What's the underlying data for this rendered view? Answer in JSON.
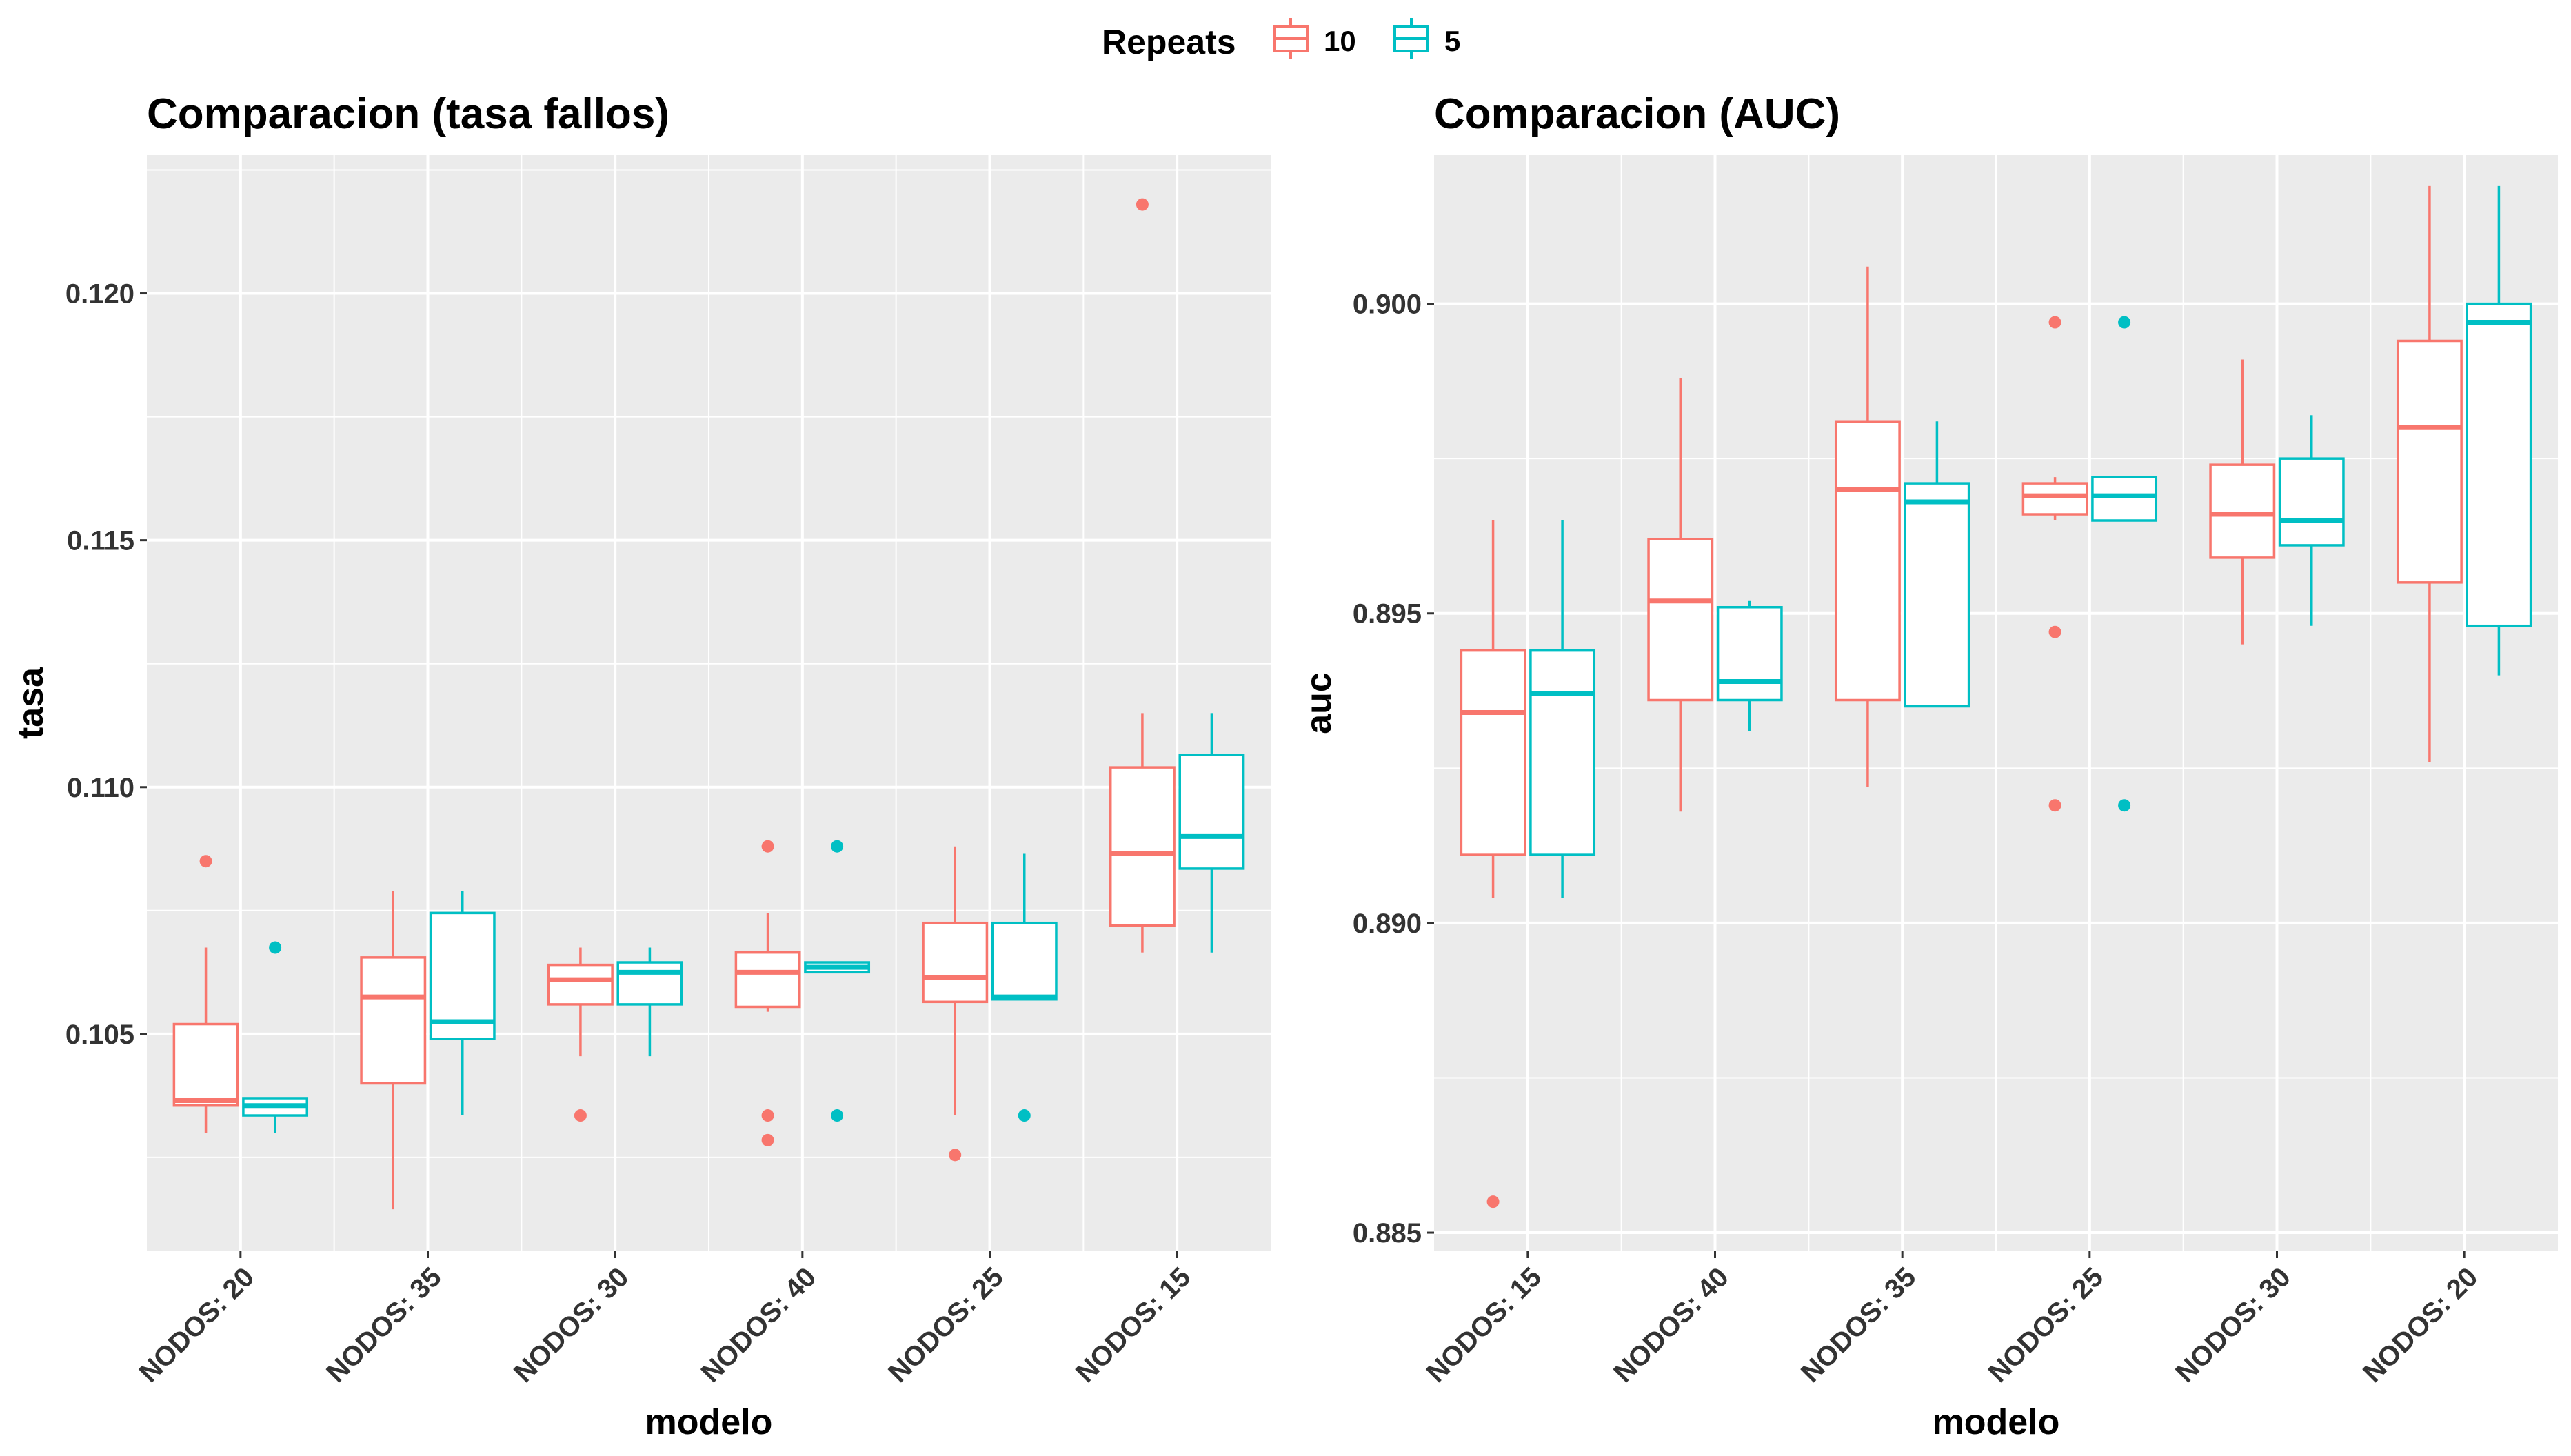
{
  "legend": {
    "title": "Repeats",
    "position": "top",
    "entries": [
      {
        "label": "10",
        "color": "#F8766D"
      },
      {
        "label": "5",
        "color": "#00BFC4"
      }
    ]
  },
  "chart_data": [
    {
      "type": "boxplot",
      "title": "Comparacion (tasa fallos)",
      "xlabel": "modelo",
      "ylabel": "tasa",
      "ylim": [
        0.1006,
        0.1228
      ],
      "yticks": [
        0.105,
        0.11,
        0.115,
        0.12
      ],
      "ytick_labels": [
        "0.105",
        "0.110",
        "0.115",
        "0.120"
      ],
      "grid": true,
      "categories": [
        "NODOS: 20",
        "NODOS: 35",
        "NODOS: 30",
        "NODOS: 40",
        "NODOS: 25",
        "NODOS: 15"
      ],
      "series": [
        {
          "name": "10",
          "color": "#F8766D",
          "boxes": [
            {
              "whisker_low": 0.103,
              "q1": 0.10355,
              "median": 0.10365,
              "q3": 0.1052,
              "whisker_high": 0.10675,
              "outliers": [
                0.1085
              ]
            },
            {
              "whisker_low": 0.10145,
              "q1": 0.104,
              "median": 0.10575,
              "q3": 0.10655,
              "whisker_high": 0.1079,
              "outliers": []
            },
            {
              "whisker_low": 0.10455,
              "q1": 0.1056,
              "median": 0.1061,
              "q3": 0.1064,
              "whisker_high": 0.10675,
              "outliers": [
                0.10335
              ]
            },
            {
              "whisker_low": 0.10545,
              "q1": 0.10555,
              "median": 0.10625,
              "q3": 0.10665,
              "whisker_high": 0.10745,
              "outliers": [
                0.1088,
                0.10335,
                0.10285
              ]
            },
            {
              "whisker_low": 0.10335,
              "q1": 0.10565,
              "median": 0.10615,
              "q3": 0.10725,
              "whisker_high": 0.1088,
              "outliers": [
                0.10255
              ]
            },
            {
              "whisker_low": 0.10665,
              "q1": 0.1072,
              "median": 0.10865,
              "q3": 0.1104,
              "whisker_high": 0.1115,
              "outliers": [
                0.1218
              ]
            }
          ]
        },
        {
          "name": "5",
          "color": "#00BFC4",
          "boxes": [
            {
              "whisker_low": 0.103,
              "q1": 0.10335,
              "median": 0.10355,
              "q3": 0.1037,
              "whisker_high": 0.1037,
              "outliers": [
                0.10675
              ]
            },
            {
              "whisker_low": 0.10335,
              "q1": 0.1049,
              "median": 0.10525,
              "q3": 0.10745,
              "whisker_high": 0.1079,
              "outliers": []
            },
            {
              "whisker_low": 0.10455,
              "q1": 0.1056,
              "median": 0.10625,
              "q3": 0.10645,
              "whisker_high": 0.10675,
              "outliers": []
            },
            {
              "whisker_low": 0.10625,
              "q1": 0.10625,
              "median": 0.10635,
              "q3": 0.10645,
              "whisker_high": 0.10645,
              "outliers": [
                0.1088,
                0.10335
              ]
            },
            {
              "whisker_low": 0.1057,
              "q1": 0.1057,
              "median": 0.10575,
              "q3": 0.10725,
              "whisker_high": 0.10865,
              "outliers": [
                0.10335
              ]
            },
            {
              "whisker_low": 0.10665,
              "q1": 0.10835,
              "median": 0.109,
              "q3": 0.11065,
              "whisker_high": 0.1115,
              "outliers": []
            }
          ]
        }
      ]
    },
    {
      "type": "boxplot",
      "title": "Comparacion (AUC)",
      "xlabel": "modelo",
      "ylabel": "auc",
      "ylim": [
        0.8847,
        0.9024
      ],
      "yticks": [
        0.885,
        0.89,
        0.895,
        0.9
      ],
      "ytick_labels": [
        "0.885",
        "0.890",
        "0.895",
        "0.900"
      ],
      "grid": true,
      "categories": [
        "NODOS: 15",
        "NODOS: 40",
        "NODOS: 35",
        "NODOS: 25",
        "NODOS: 30",
        "NODOS: 20"
      ],
      "series": [
        {
          "name": "10",
          "color": "#F8766D",
          "boxes": [
            {
              "whisker_low": 0.8904,
              "q1": 0.8911,
              "median": 0.8934,
              "q3": 0.8944,
              "whisker_high": 0.8965,
              "outliers": [
                0.8855
              ]
            },
            {
              "whisker_low": 0.8918,
              "q1": 0.8936,
              "median": 0.8952,
              "q3": 0.8962,
              "whisker_high": 0.8988,
              "outliers": []
            },
            {
              "whisker_low": 0.8922,
              "q1": 0.8936,
              "median": 0.897,
              "q3": 0.8981,
              "whisker_high": 0.9006,
              "outliers": []
            },
            {
              "whisker_low": 0.8965,
              "q1": 0.8966,
              "median": 0.8969,
              "q3": 0.8971,
              "whisker_high": 0.8972,
              "outliers": [
                0.8997,
                0.8947,
                0.8919
              ]
            },
            {
              "whisker_low": 0.8945,
              "q1": 0.8959,
              "median": 0.8966,
              "q3": 0.8974,
              "whisker_high": 0.8991,
              "outliers": []
            },
            {
              "whisker_low": 0.8926,
              "q1": 0.8955,
              "median": 0.898,
              "q3": 0.8994,
              "whisker_high": 0.9019,
              "outliers": []
            }
          ]
        },
        {
          "name": "5",
          "color": "#00BFC4",
          "boxes": [
            {
              "whisker_low": 0.8904,
              "q1": 0.8911,
              "median": 0.8937,
              "q3": 0.8944,
              "whisker_high": 0.8965,
              "outliers": []
            },
            {
              "whisker_low": 0.8931,
              "q1": 0.8936,
              "median": 0.8939,
              "q3": 0.8951,
              "whisker_high": 0.8952,
              "outliers": []
            },
            {
              "whisker_low": 0.8935,
              "q1": 0.8935,
              "median": 0.8968,
              "q3": 0.8971,
              "whisker_high": 0.8981,
              "outliers": []
            },
            {
              "whisker_low": 0.8965,
              "q1": 0.8965,
              "median": 0.8969,
              "q3": 0.8972,
              "whisker_high": 0.8972,
              "outliers": [
                0.8997,
                0.8919
              ]
            },
            {
              "whisker_low": 0.8948,
              "q1": 0.8961,
              "median": 0.8965,
              "q3": 0.8975,
              "whisker_high": 0.8982,
              "outliers": []
            },
            {
              "whisker_low": 0.894,
              "q1": 0.8948,
              "median": 0.8997,
              "q3": 0.9,
              "whisker_high": 0.9019,
              "outliers": []
            }
          ]
        }
      ]
    }
  ]
}
